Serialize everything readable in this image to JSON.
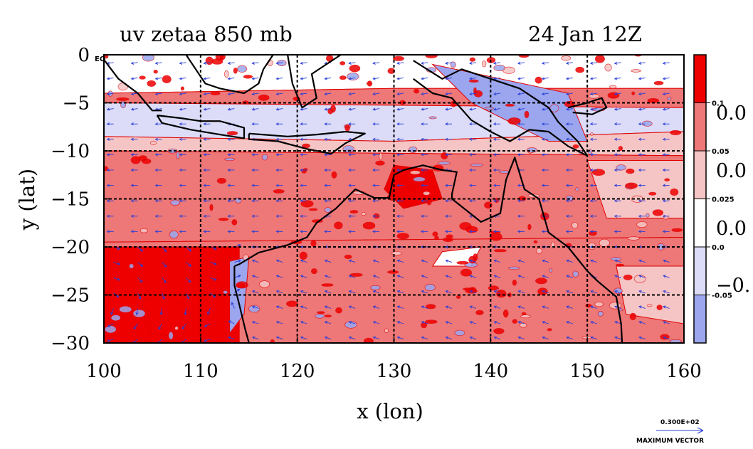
{
  "chart_data": {
    "type": "heatmap",
    "title_left": "uv zetaa 850 mb",
    "title_right": "24 Jan 12Z",
    "xlabel": "x (lon)",
    "ylabel": "y (lat)",
    "xlim": [
      100,
      160
    ],
    "ylim": [
      -30,
      0
    ],
    "x_ticks": [
      100,
      110,
      120,
      130,
      140,
      150,
      160
    ],
    "x_tick_labels": [
      "100",
      "110",
      "120",
      "130",
      "140",
      "150",
      "160"
    ],
    "y_ticks": [
      0,
      -5,
      -10,
      -15,
      -20,
      -25,
      -30
    ],
    "y_tick_labels": [
      "0",
      "−5",
      "−10",
      "−15",
      "−20",
      "−25",
      "−30"
    ],
    "grid_x": [
      110,
      120,
      130,
      140,
      150
    ],
    "grid_y": [
      -5,
      -10,
      -15,
      -20,
      -25
    ],
    "equator_label": "EQ",
    "colorbar": {
      "band_colors": [
        "#ee0000",
        "#ee7777",
        "#f5c4c4",
        "#ffffff",
        "#dcdcf8",
        "#9ba6ee"
      ],
      "labels_small": [
        "0.1",
        "0.05",
        "0.025",
        "0.0",
        "-0.05"
      ],
      "labels_big": [
        "0.0",
        "0.0",
        "0.0",
        "−0."
      ]
    },
    "regions": [
      {
        "name": "south-china-sea-north-band",
        "level": 3,
        "poly": [
          [
            100,
            0
          ],
          [
            160,
            0
          ],
          [
            160,
            -3.5
          ],
          [
            130,
            -3.5
          ],
          [
            100,
            -4
          ]
        ]
      },
      {
        "name": "maritime-band",
        "level": 1,
        "poly": [
          [
            100,
            -4
          ],
          [
            130,
            -3.5
          ],
          [
            160,
            -3.5
          ],
          [
            160,
            -5.5
          ],
          [
            100,
            -5
          ]
        ]
      },
      {
        "name": "java-sea-band",
        "level": 4,
        "poly": [
          [
            100,
            -5
          ],
          [
            160,
            -5.5
          ],
          [
            160,
            -8
          ],
          [
            130,
            -9
          ],
          [
            100,
            -8.5
          ]
        ]
      },
      {
        "name": "timor-band",
        "level": 2,
        "poly": [
          [
            100,
            -8.5
          ],
          [
            130,
            -9
          ],
          [
            160,
            -8
          ],
          [
            160,
            -10.5
          ],
          [
            100,
            -10
          ]
        ]
      },
      {
        "name": "north-australia",
        "level": 1,
        "poly": [
          [
            100,
            -10
          ],
          [
            160,
            -10.5
          ],
          [
            160,
            -19
          ],
          [
            100,
            -19.5
          ]
        ]
      },
      {
        "name": "south-australia",
        "level": 1,
        "poly": [
          [
            100,
            -19.5
          ],
          [
            160,
            -19
          ],
          [
            160,
            -30
          ],
          [
            100,
            -30
          ]
        ]
      },
      {
        "name": "indian-ocean-southwest",
        "level": 0,
        "poly": [
          [
            100,
            -20
          ],
          [
            114,
            -20
          ],
          [
            114,
            -30
          ],
          [
            100,
            -30
          ]
        ]
      },
      {
        "name": "cyclone-core",
        "level": 0,
        "poly": [
          [
            104,
            -25.5
          ],
          [
            107,
            -25
          ],
          [
            109,
            -27
          ],
          [
            108,
            -29.5
          ],
          [
            105,
            -29
          ],
          [
            104,
            -27
          ]
        ]
      },
      {
        "name": "west-coast-strip",
        "level": 5,
        "poly": [
          [
            113,
            -21.5
          ],
          [
            115,
            -21
          ],
          [
            114.5,
            -27
          ],
          [
            113,
            -29
          ]
        ]
      },
      {
        "name": "arafura-high",
        "level": 0,
        "poly": [
          [
            130,
            -11.5
          ],
          [
            134,
            -12
          ],
          [
            135,
            -15
          ],
          [
            131,
            -16
          ],
          [
            129,
            -14
          ]
        ]
      },
      {
        "name": "coral-sea-light",
        "level": 2,
        "poly": [
          [
            150,
            -11
          ],
          [
            160,
            -11
          ],
          [
            160,
            -17
          ],
          [
            152,
            -17
          ]
        ]
      },
      {
        "name": "new-guinea-blue",
        "level": 5,
        "poly": [
          [
            134,
            -1
          ],
          [
            148,
            -4
          ],
          [
            150,
            -9
          ],
          [
            146,
            -9
          ],
          [
            138,
            -5
          ]
        ]
      },
      {
        "name": "tasman-light",
        "level": 2,
        "poly": [
          [
            153,
            -22
          ],
          [
            160,
            -22
          ],
          [
            160,
            -28
          ],
          [
            154,
            -27
          ]
        ]
      },
      {
        "name": "inland-white",
        "level": 3,
        "poly": [
          [
            135,
            -20.5
          ],
          [
            139,
            -20
          ],
          [
            138,
            -22
          ],
          [
            134,
            -22
          ]
        ]
      }
    ],
    "coastlines": [
      {
        "name": "australia",
        "points": [
          [
            113.5,
            -22
          ],
          [
            114,
            -21.8
          ],
          [
            116,
            -20.6
          ],
          [
            119,
            -19.8
          ],
          [
            121,
            -19
          ],
          [
            122,
            -17.5
          ],
          [
            124,
            -16
          ],
          [
            126,
            -14
          ],
          [
            128,
            -14.9
          ],
          [
            129.5,
            -14.9
          ],
          [
            130,
            -12.5
          ],
          [
            131,
            -12
          ],
          [
            133,
            -11.5
          ],
          [
            135,
            -12
          ],
          [
            136.5,
            -12.2
          ],
          [
            136,
            -14.5
          ],
          [
            136,
            -15
          ],
          [
            139,
            -17.4
          ],
          [
            141,
            -16.5
          ],
          [
            141.6,
            -13
          ],
          [
            142.5,
            -10.7
          ],
          [
            143.5,
            -14
          ],
          [
            145,
            -15
          ],
          [
            146,
            -18.5
          ],
          [
            148,
            -20
          ],
          [
            150,
            -22.5
          ],
          [
            151,
            -23.5
          ],
          [
            153,
            -25.2
          ],
          [
            153.5,
            -28
          ],
          [
            153.6,
            -30
          ]
        ]
      },
      {
        "name": "australia-west",
        "points": [
          [
            113.5,
            -22
          ],
          [
            113.5,
            -24
          ],
          [
            114,
            -26
          ],
          [
            114.6,
            -28.5
          ],
          [
            115,
            -30
          ]
        ]
      },
      {
        "name": "sumatra-south",
        "points": [
          [
            100,
            -0.5
          ],
          [
            101.5,
            -2.5
          ],
          [
            103.5,
            -4
          ],
          [
            105,
            -5.8
          ],
          [
            106,
            -5.8
          ]
        ]
      },
      {
        "name": "java",
        "points": [
          [
            105.5,
            -6.3
          ],
          [
            108,
            -6.6
          ],
          [
            110,
            -6.9
          ],
          [
            112,
            -6.9
          ],
          [
            114.5,
            -7.6
          ],
          [
            114.5,
            -8.7
          ],
          [
            112,
            -8.3
          ],
          [
            109,
            -7.8
          ],
          [
            106,
            -7.1
          ],
          [
            105.5,
            -6.3
          ]
        ]
      },
      {
        "name": "lesser-sunda",
        "points": [
          [
            115,
            -8.2
          ],
          [
            119,
            -8.5
          ],
          [
            122,
            -8.3
          ],
          [
            125,
            -8
          ],
          [
            127,
            -8.2
          ],
          [
            125,
            -9.2
          ],
          [
            123.5,
            -10.3
          ],
          [
            121,
            -9.8
          ],
          [
            118,
            -9
          ],
          [
            115,
            -8.8
          ],
          [
            115,
            -8.2
          ]
        ]
      },
      {
        "name": "borneo-south",
        "points": [
          [
            108.5,
            0
          ],
          [
            109.5,
            -1.5
          ],
          [
            110.5,
            -3
          ],
          [
            112,
            -3.5
          ],
          [
            114.5,
            -4
          ],
          [
            116,
            -3
          ],
          [
            116.5,
            -1.5
          ],
          [
            117.5,
            0
          ]
        ]
      },
      {
        "name": "sulawesi",
        "points": [
          [
            119,
            0
          ],
          [
            119.5,
            -3
          ],
          [
            120.5,
            -5.5
          ],
          [
            122,
            -4.5
          ],
          [
            121.5,
            -2
          ],
          [
            123,
            -1
          ],
          [
            124.5,
            0
          ]
        ]
      },
      {
        "name": "new-guinea-south",
        "points": [
          [
            132,
            -2.5
          ],
          [
            134,
            -4
          ],
          [
            136,
            -4.5
          ],
          [
            138,
            -6.8
          ],
          [
            140,
            -8
          ],
          [
            142,
            -9
          ],
          [
            144,
            -7.8
          ],
          [
            146,
            -8
          ],
          [
            148,
            -9.5
          ],
          [
            150,
            -10.5
          ],
          [
            149,
            -9
          ],
          [
            147,
            -7
          ],
          [
            146,
            -5.5
          ],
          [
            143,
            -3.5
          ],
          [
            140,
            -2.5
          ],
          [
            137,
            -1.5
          ],
          [
            135,
            -2.5
          ],
          [
            132,
            -0.6
          ]
        ]
      },
      {
        "name": "new-britain",
        "points": [
          [
            148,
            -5.5
          ],
          [
            150,
            -5
          ],
          [
            151.5,
            -4.5
          ],
          [
            152,
            -5.5
          ],
          [
            150.5,
            -6.2
          ],
          [
            148.5,
            -6
          ]
        ]
      }
    ],
    "vector_grid": {
      "x_step": 2.5,
      "y_step": 1.6,
      "color": "#2a3fd8"
    },
    "max_vector": {
      "value_label": "0.300E+02",
      "caption": "MAXIMUM VECTOR"
    }
  }
}
